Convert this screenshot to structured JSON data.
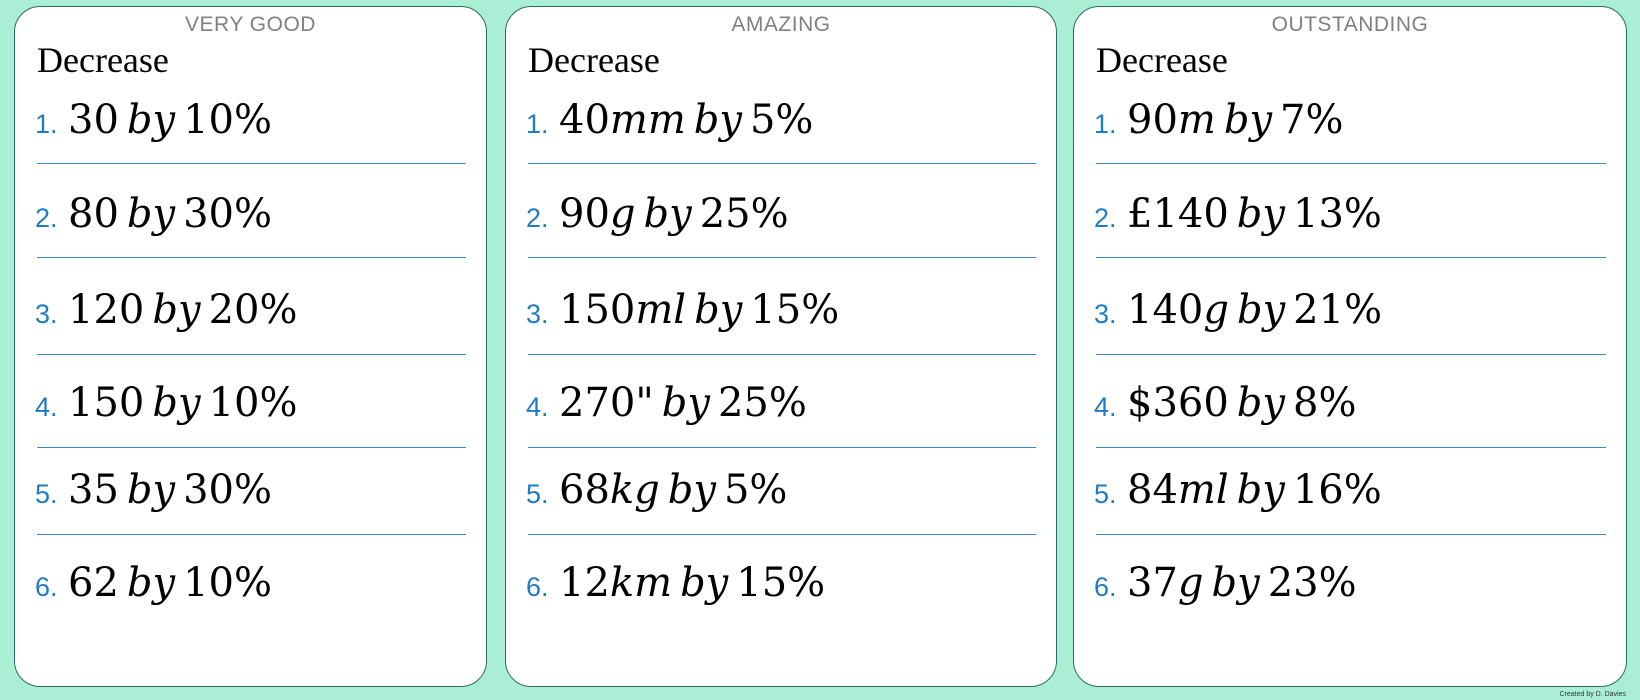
{
  "columns": [
    {
      "level": "VERY GOOD",
      "heading": "Decrease",
      "questions": [
        {
          "num": "1.",
          "amount": "30",
          "unit": "",
          "by": "by",
          "pct": "10%"
        },
        {
          "num": "2.",
          "amount": "80",
          "unit": "",
          "by": "by",
          "pct": "30%"
        },
        {
          "num": "3.",
          "amount": "120",
          "unit": "",
          "by": "by",
          "pct": "20%"
        },
        {
          "num": "4.",
          "amount": "150",
          "unit": "",
          "by": "by",
          "pct": "10%"
        },
        {
          "num": "5.",
          "amount": "35",
          "unit": "",
          "by": "by",
          "pct": "30%"
        },
        {
          "num": "6.",
          "amount": "62",
          "unit": "",
          "by": "by",
          "pct": "10%"
        }
      ]
    },
    {
      "level": "AMAZING",
      "heading": "Decrease",
      "questions": [
        {
          "num": "1.",
          "amount": "40",
          "unit": "mm",
          "by": "by",
          "pct": "5%"
        },
        {
          "num": "2.",
          "amount": "90",
          "unit": "g",
          "by": "by",
          "pct": "25%"
        },
        {
          "num": "3.",
          "amount": "150",
          "unit": "ml",
          "by": "by",
          "pct": "15%"
        },
        {
          "num": "4.",
          "amount": "270\"",
          "unit": "",
          "by": "by",
          "pct": "25%"
        },
        {
          "num": "5.",
          "amount": "68",
          "unit": "kg",
          "by": "by",
          "pct": "5%"
        },
        {
          "num": "6.",
          "amount": "12",
          "unit": "km",
          "by": "by",
          "pct": "15%"
        }
      ]
    },
    {
      "level": "OUTSTANDING",
      "heading": "Decrease",
      "questions": [
        {
          "num": "1.",
          "amount": "90",
          "unit": "m",
          "by": "by",
          "pct": "7%"
        },
        {
          "num": "2.",
          "amount": "£140",
          "unit": "",
          "by": "by",
          "pct": "13%"
        },
        {
          "num": "3.",
          "amount": "140",
          "unit": "g",
          "by": "by",
          "pct": "21%"
        },
        {
          "num": "4.",
          "amount": "$360",
          "unit": "",
          "by": "by",
          "pct": "8%"
        },
        {
          "num": "5.",
          "amount": "84",
          "unit": "ml",
          "by": "by",
          "pct": "16%"
        },
        {
          "num": "6.",
          "amount": "37",
          "unit": "g",
          "by": "by",
          "pct": "23%"
        }
      ]
    }
  ],
  "credit": "Created by D. Davies",
  "colors": {
    "background": "#abeed6",
    "number": "#1f7bc4",
    "rule": "#3b88c6",
    "level_text": "#808080"
  }
}
